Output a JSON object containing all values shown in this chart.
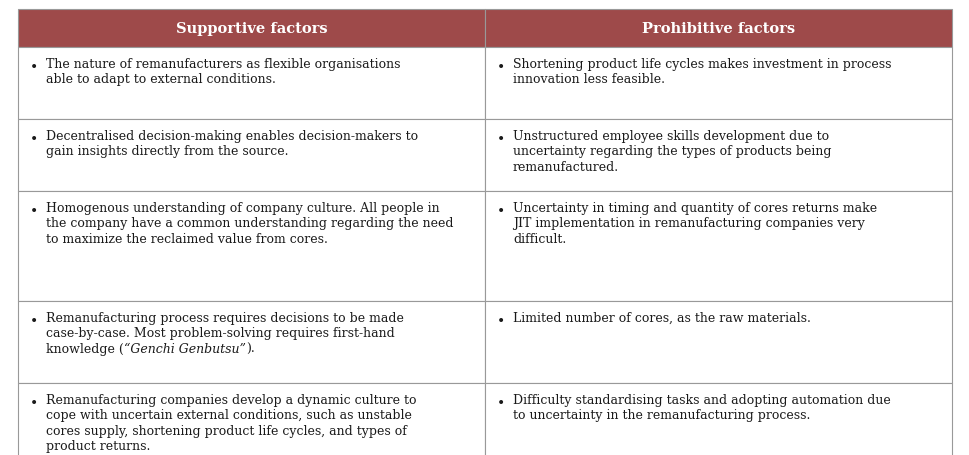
{
  "header_bg_color": "#9E4A4A",
  "header_text_color": "#FFFFFF",
  "header_font_size": 10.5,
  "cell_font_size": 9.0,
  "border_color": "#999999",
  "cell_bg_color": "#FFFFFF",
  "headers": [
    "Supportive factors",
    "Prohibitive factors"
  ],
  "rows": [
    [
      "The nature of remanufacturers as flexible organisations able to adapt to external conditions.",
      "Shortening product life cycles makes investment in process innovation less feasible."
    ],
    [
      "Decentralised decision-making enables decision-makers to gain insights directly from the source.",
      "Unstructured employee skills development due to uncertainty regarding the types of products being remanufactured."
    ],
    [
      "Homogenous understanding of company culture. All people in the company have a common understanding regarding the need to maximize the reclaimed value from cores.",
      "Uncertainty in timing and quantity of cores returns make JIT implementation in remanufacturing companies very difficult."
    ],
    [
      "Remanufacturing process requires decisions to be made case-by-case. Most problem-solving requires first-hand knowledge (“Genchi Genbutsu”).",
      "Limited number of cores, as the raw materials."
    ],
    [
      "Remanufacturing companies develop a dynamic culture to cope with uncertain external conditions, such as unstable cores supply, shortening product life cycles, and types of product returns.",
      "Difficulty standardising tasks and adopting automation due to uncertainty in the remanufacturing process."
    ]
  ],
  "italic_phrase": "“Genchi Genbutsu”",
  "fig_width": 9.7,
  "fig_height": 4.56,
  "dpi": 100
}
